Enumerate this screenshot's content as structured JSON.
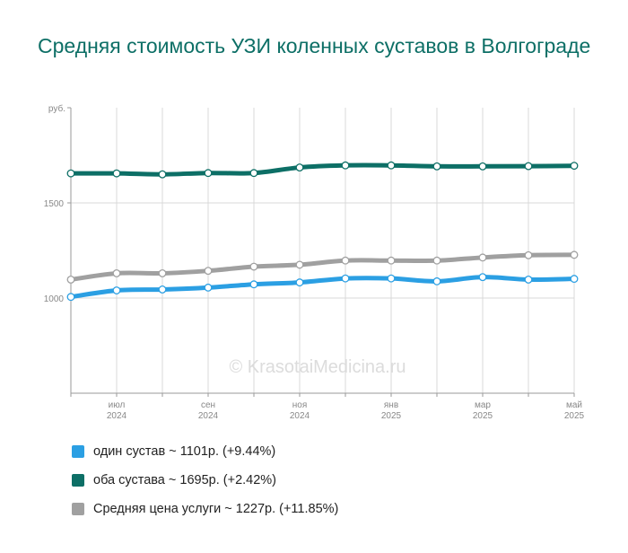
{
  "title": "Средняя стоимость УЗИ коленных суставов в Волгограде",
  "watermark": "© KrasotaiMedicina.ru",
  "chart_data": {
    "type": "line",
    "title": "Средняя стоимость УЗИ коленных суставов в Волгограде",
    "y_unit": "руб.",
    "ylim": [
      500,
      2000
    ],
    "y_ticks": [
      "1000",
      "1500"
    ],
    "y_tick_values": [
      1000,
      1500
    ],
    "x_points": 12,
    "x_tick_labels": [
      {
        "index": 1,
        "month": "июл",
        "year": "2024"
      },
      {
        "index": 3,
        "month": "сен",
        "year": "2024"
      },
      {
        "index": 5,
        "month": "ноя",
        "year": "2024"
      },
      {
        "index": 7,
        "month": "янв",
        "year": "2025"
      },
      {
        "index": 9,
        "month": "мар",
        "year": "2025"
      },
      {
        "index": 11,
        "month": "май",
        "year": "2025"
      }
    ],
    "grid": true,
    "series": [
      {
        "name": "один сустав",
        "color": "#2b9fe3",
        "values": [
          1006,
          1040,
          1045,
          1055,
          1072,
          1082,
          1103,
          1103,
          1088,
          1110,
          1097,
          1101
        ]
      },
      {
        "name": "оба сустава",
        "color": "#0d6f66",
        "values": [
          1655,
          1655,
          1650,
          1657,
          1657,
          1686,
          1697,
          1697,
          1692,
          1692,
          1693,
          1695
        ]
      },
      {
        "name": "Средняя цена услуги",
        "color": "#a0a0a0",
        "values": [
          1097,
          1130,
          1130,
          1143,
          1165,
          1175,
          1197,
          1197,
          1197,
          1213,
          1225,
          1227
        ]
      }
    ]
  },
  "legend": [
    {
      "label": "один сустав ~ 1101р. (+9.44%)",
      "color": "#2b9fe3"
    },
    {
      "label": "оба сустава ~ 1695р. (+2.42%)",
      "color": "#0d6f66"
    },
    {
      "label": "Средняя цена услуги ~ 1227р. (+11.85%)",
      "color": "#a0a0a0"
    }
  ]
}
